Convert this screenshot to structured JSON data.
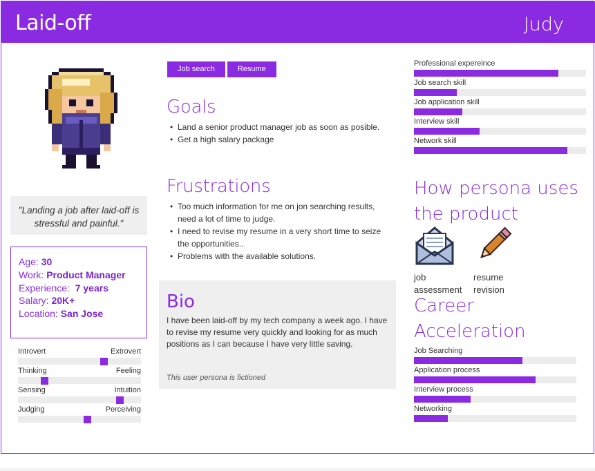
{
  "header": {
    "title": "Laid-off",
    "persona_name": "Judy"
  },
  "quote": "\"Landing a job after laid-off is stressful and painful.\"",
  "demographics": [
    {
      "label": "Age:",
      "value": "30"
    },
    {
      "label": "Work:",
      "value": "Product Manager"
    },
    {
      "label": "Experience:",
      "value": "7 years"
    },
    {
      "label": "Salary:",
      "value": "20K+"
    },
    {
      "label": "Location:",
      "value": "San Jose"
    }
  ],
  "traits": [
    {
      "left": "Introvert",
      "right": "Extrovert",
      "position": 0.71
    },
    {
      "left": "Thinking",
      "right": "Feeling",
      "position": 0.2
    },
    {
      "left": "Sensing",
      "right": "Intuition",
      "position": 0.85
    },
    {
      "left": "Judging",
      "right": "Perceiving",
      "position": 0.57
    }
  ],
  "tags": [
    "Job search",
    "Resume"
  ],
  "goals": {
    "heading": "Goals",
    "items": [
      "Land a senior product manager job as soon as posible.",
      "Get a high salary package"
    ]
  },
  "frustrations": {
    "heading": "Frustrations",
    "items": [
      "Too much information for me on jon searching results, need a lot of time to judge.",
      "I need to revise my resume in a very short time to seize the opportunities..",
      "Problems with the available solutions."
    ]
  },
  "bio": {
    "heading": "Bio",
    "text": "I have been laid-off by my tech company a week ago. I have to revise my resume very quickly and looking for as much positions as I can because I have very little saving.",
    "note": "This user persona is fictioned"
  },
  "skills": [
    {
      "label": "Professional expereince",
      "value": 0.84
    },
    {
      "label": "Job search skill",
      "value": 0.25
    },
    {
      "label": "Job application skill",
      "value": 0.28
    },
    {
      "label": "Interview skill",
      "value": 0.38
    },
    {
      "label": "Network skill",
      "value": 0.89
    }
  ],
  "usage": {
    "heading": "How persona uses the product",
    "items": [
      {
        "icon": "envelope-icon",
        "caption": "job assessment"
      },
      {
        "icon": "pencil-icon",
        "caption": "resume revision"
      }
    ]
  },
  "career": {
    "heading": "Career Acceleration",
    "items": [
      {
        "label": "Job Searching",
        "value": 0.67
      },
      {
        "label": "Application process",
        "value": 0.75
      },
      {
        "label": "Interview process",
        "value": 0.35
      },
      {
        "label": "Networking",
        "value": 0.21
      }
    ]
  },
  "colors": {
    "accent": "#8a2be2",
    "track": "#ececec",
    "panel": "#efefef"
  }
}
